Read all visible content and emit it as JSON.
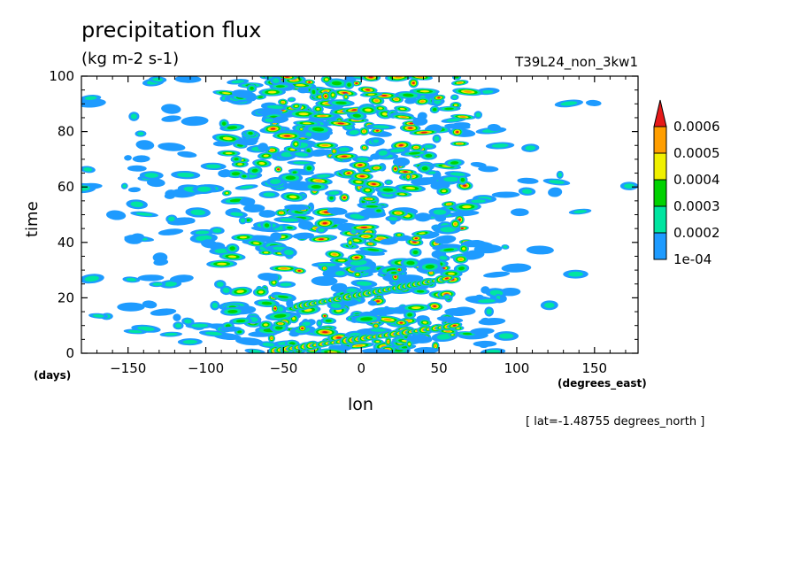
{
  "header": {
    "title": "precipitation flux",
    "units": "(kg m-2 s-1)",
    "run_id": "T39L24_non_3kw1"
  },
  "footer": {
    "lat_note": "[ lat=-1.48755 degrees_north ]"
  },
  "chart_data": {
    "type": "heatmap",
    "title": "precipitation flux",
    "subtitle": "(kg m-2 s-1)",
    "xlabel": "lon",
    "xunits": "(degrees_east)",
    "ylabel": "time",
    "yunits": "(days)",
    "xlim": [
      -180,
      178
    ],
    "ylim": [
      0,
      100
    ],
    "x_ticks": [
      "-150",
      "-100",
      "-50",
      "0",
      "50",
      "100",
      "150"
    ],
    "y_ticks": [
      "0",
      "20",
      "40",
      "60",
      "80",
      "100"
    ],
    "colorbar": {
      "levels": [
        "1e-04",
        "0.0002",
        "0.0003",
        "0.0004",
        "0.0005",
        "0.0006"
      ],
      "colors": [
        "#1e9bff",
        "#00e5a0",
        "#00d200",
        "#f0f000",
        "#ff9e00",
        "#e61919"
      ],
      "extends_max": true
    },
    "field_description_regions": [
      {
        "lon_range": [
          -180,
          -80
        ],
        "intensity": "sparse, mostly 1e-04 to 0.0003"
      },
      {
        "lon_range": [
          -80,
          75
        ],
        "intensity": "dense, frequent values above 0.0006"
      },
      {
        "lon_range": [
          75,
          178
        ],
        "intensity": "very sparse, near zero"
      }
    ],
    "features": [
      {
        "type": "eastward-propagating band",
        "from": {
          "lon": -55,
          "time": 1
        },
        "to": {
          "lon": 60,
          "time": 10
        }
      },
      {
        "type": "eastward-propagating band",
        "from": {
          "lon": -40,
          "time": 17
        },
        "to": {
          "lon": 55,
          "time": 27
        }
      }
    ],
    "grid": false,
    "legend_position": "right"
  }
}
